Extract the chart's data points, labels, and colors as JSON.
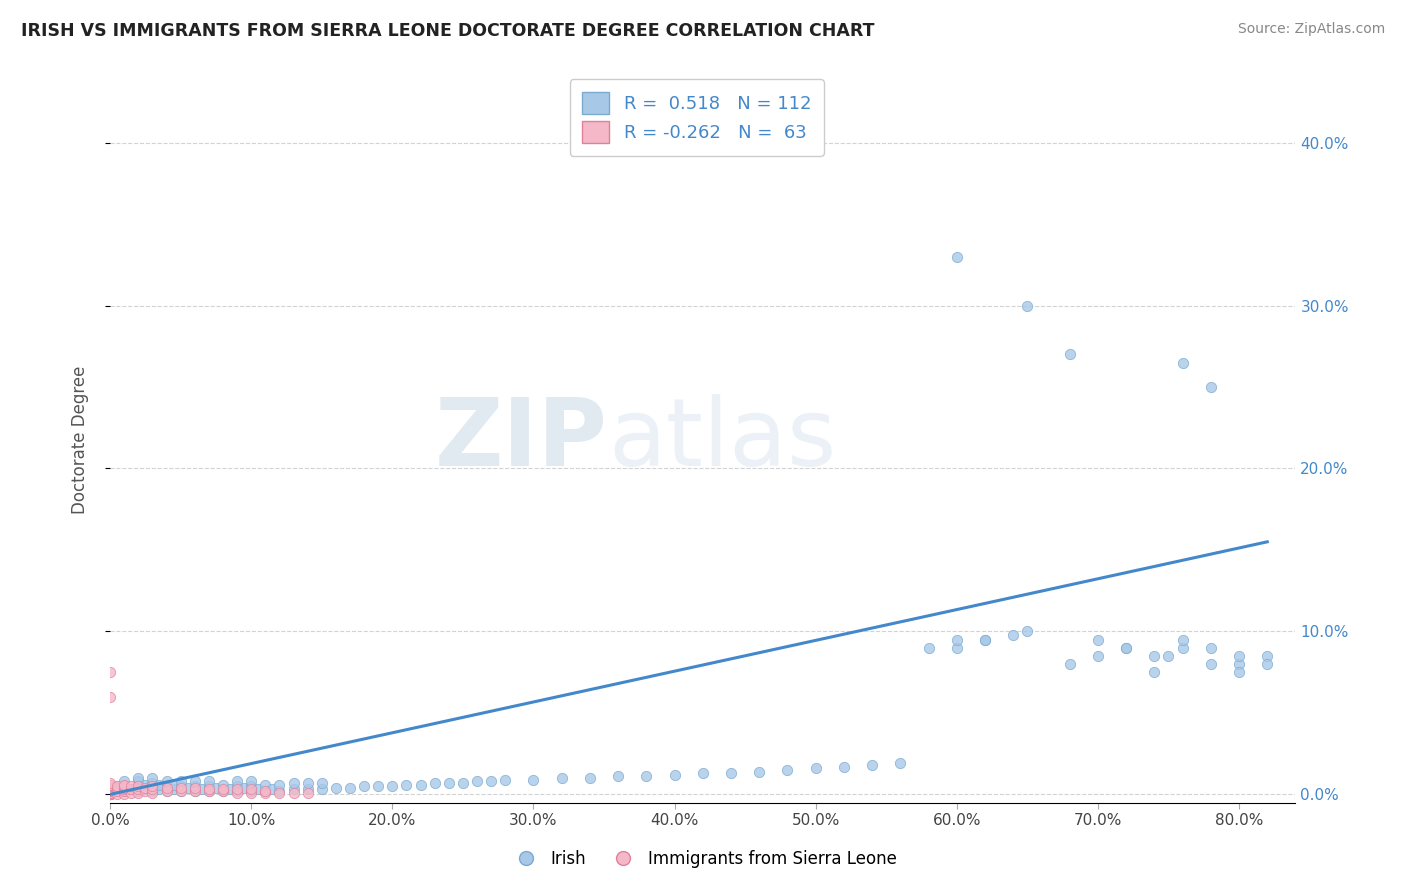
{
  "title": "IRISH VS IMMIGRANTS FROM SIERRA LEONE DOCTORATE DEGREE CORRELATION CHART",
  "source": "Source: ZipAtlas.com",
  "ylabel": "Doctorate Degree",
  "blue_R": 0.518,
  "blue_N": 112,
  "pink_R": -0.262,
  "pink_N": 63,
  "blue_color": "#A8C8E8",
  "pink_color": "#F5B8C8",
  "blue_edge": "#7AAAD0",
  "pink_edge": "#E0809A",
  "trend_color": "#4488CC",
  "xlim": [
    0.0,
    0.84
  ],
  "ylim": [
    -0.005,
    0.44
  ],
  "xticks": [
    0.0,
    0.1,
    0.2,
    0.3,
    0.4,
    0.5,
    0.6,
    0.7,
    0.8
  ],
  "xtick_labels": [
    "0.0%",
    "10.0%",
    "20.0%",
    "30.0%",
    "40.0%",
    "50.0%",
    "60.0%",
    "70.0%",
    "80.0%"
  ],
  "yticks": [
    0.0,
    0.1,
    0.2,
    0.3,
    0.4
  ],
  "ytick_labels_right": [
    "0.0%",
    "10.0%",
    "20.0%",
    "30.0%",
    "40.0%"
  ],
  "watermark_zip": "ZIP",
  "watermark_atlas": "atlas",
  "legend_irish": "Irish",
  "legend_sierra": "Immigrants from Sierra Leone",
  "trend_x0": 0.0,
  "trend_y0": 0.0,
  "trend_x1": 0.82,
  "trend_y1": 0.155,
  "blue_x": [
    0.005,
    0.01,
    0.01,
    0.01,
    0.015,
    0.02,
    0.02,
    0.02,
    0.02,
    0.025,
    0.025,
    0.03,
    0.03,
    0.03,
    0.03,
    0.035,
    0.035,
    0.04,
    0.04,
    0.04,
    0.045,
    0.045,
    0.05,
    0.05,
    0.05,
    0.055,
    0.06,
    0.06,
    0.06,
    0.065,
    0.07,
    0.07,
    0.07,
    0.075,
    0.08,
    0.08,
    0.085,
    0.09,
    0.09,
    0.09,
    0.095,
    0.1,
    0.1,
    0.1,
    0.105,
    0.11,
    0.11,
    0.115,
    0.12,
    0.12,
    0.13,
    0.13,
    0.14,
    0.14,
    0.15,
    0.15,
    0.16,
    0.17,
    0.18,
    0.19,
    0.2,
    0.21,
    0.22,
    0.23,
    0.24,
    0.25,
    0.26,
    0.27,
    0.28,
    0.3,
    0.32,
    0.34,
    0.36,
    0.38,
    0.4,
    0.42,
    0.44,
    0.46,
    0.48,
    0.5,
    0.52,
    0.54,
    0.56,
    0.58,
    0.6,
    0.6,
    0.62,
    0.64,
    0.65,
    0.68,
    0.7,
    0.72,
    0.74,
    0.75,
    0.76,
    0.78,
    0.8,
    0.8,
    0.82,
    0.6,
    0.62,
    0.65,
    0.68,
    0.7,
    0.72,
    0.74,
    0.76,
    0.78,
    0.8,
    0.82,
    0.76,
    0.78
  ],
  "blue_y": [
    0.005,
    0.002,
    0.005,
    0.008,
    0.003,
    0.002,
    0.005,
    0.008,
    0.01,
    0.003,
    0.006,
    0.002,
    0.005,
    0.007,
    0.01,
    0.003,
    0.006,
    0.002,
    0.005,
    0.008,
    0.003,
    0.006,
    0.002,
    0.005,
    0.008,
    0.004,
    0.002,
    0.005,
    0.008,
    0.003,
    0.002,
    0.005,
    0.008,
    0.004,
    0.002,
    0.006,
    0.003,
    0.002,
    0.005,
    0.008,
    0.004,
    0.002,
    0.005,
    0.008,
    0.003,
    0.002,
    0.006,
    0.003,
    0.002,
    0.006,
    0.003,
    0.007,
    0.003,
    0.007,
    0.003,
    0.007,
    0.004,
    0.004,
    0.005,
    0.005,
    0.005,
    0.006,
    0.006,
    0.007,
    0.007,
    0.007,
    0.008,
    0.008,
    0.009,
    0.009,
    0.01,
    0.01,
    0.011,
    0.011,
    0.012,
    0.013,
    0.013,
    0.014,
    0.015,
    0.016,
    0.017,
    0.018,
    0.019,
    0.09,
    0.09,
    0.095,
    0.095,
    0.098,
    0.1,
    0.08,
    0.085,
    0.09,
    0.075,
    0.085,
    0.09,
    0.08,
    0.08,
    0.085,
    0.085,
    0.33,
    0.095,
    0.3,
    0.27,
    0.095,
    0.09,
    0.085,
    0.095,
    0.09,
    0.075,
    0.08,
    0.265,
    0.25
  ],
  "pink_x": [
    0.0,
    0.0,
    0.0,
    0.0,
    0.0,
    0.0,
    0.0,
    0.0,
    0.0,
    0.0,
    0.0,
    0.0,
    0.0,
    0.0,
    0.0,
    0.0,
    0.0,
    0.0,
    0.0,
    0.0,
    0.0,
    0.005,
    0.005,
    0.005,
    0.005,
    0.01,
    0.01,
    0.01,
    0.01,
    0.01,
    0.01,
    0.015,
    0.015,
    0.015,
    0.02,
    0.02,
    0.02,
    0.025,
    0.025,
    0.03,
    0.03,
    0.03,
    0.04,
    0.04,
    0.05,
    0.05,
    0.06,
    0.06,
    0.07,
    0.07,
    0.08,
    0.08,
    0.09,
    0.09,
    0.1,
    0.1,
    0.11,
    0.11,
    0.12,
    0.13,
    0.14,
    0.0,
    0.0
  ],
  "pink_y": [
    0.0,
    0.0,
    0.0,
    0.0,
    0.0,
    0.0,
    0.0,
    0.0,
    0.001,
    0.001,
    0.002,
    0.002,
    0.003,
    0.003,
    0.004,
    0.004,
    0.005,
    0.005,
    0.006,
    0.006,
    0.007,
    0.0,
    0.002,
    0.004,
    0.005,
    0.0,
    0.002,
    0.003,
    0.004,
    0.005,
    0.006,
    0.001,
    0.003,
    0.005,
    0.001,
    0.003,
    0.005,
    0.002,
    0.004,
    0.001,
    0.003,
    0.005,
    0.002,
    0.004,
    0.002,
    0.004,
    0.002,
    0.004,
    0.002,
    0.003,
    0.002,
    0.003,
    0.001,
    0.003,
    0.001,
    0.003,
    0.001,
    0.002,
    0.001,
    0.001,
    0.001,
    0.075,
    0.06
  ]
}
